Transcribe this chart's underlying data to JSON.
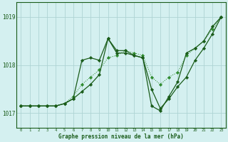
{
  "xlabel": "Graphe pression niveau de la mer (hPa)",
  "bg_color": "#d4f0f0",
  "grid_color": "#aed4d4",
  "line_color_dark": "#1a5c1a",
  "line_color_light": "#2e8b2e",
  "xlim": [
    -0.5,
    23.5
  ],
  "ylim": [
    1016.7,
    1019.3
  ],
  "yticks": [
    1017,
    1018,
    1019
  ],
  "xticks": [
    0,
    1,
    2,
    3,
    4,
    5,
    6,
    7,
    8,
    9,
    10,
    11,
    12,
    13,
    14,
    15,
    16,
    17,
    18,
    19,
    20,
    21,
    22,
    23
  ],
  "series_dotted_x": [
    0,
    1,
    2,
    3,
    4,
    5,
    6,
    7,
    8,
    9,
    10,
    11,
    12,
    13,
    14,
    15,
    16,
    17,
    18,
    19,
    20,
    21,
    22,
    23
  ],
  "series_dotted_y": [
    1017.15,
    1017.15,
    1017.15,
    1017.15,
    1017.15,
    1017.2,
    1017.35,
    1017.6,
    1017.75,
    1017.9,
    1018.15,
    1018.2,
    1018.3,
    1018.25,
    1018.2,
    1017.75,
    1017.6,
    1017.75,
    1017.85,
    1018.2,
    1018.35,
    1018.5,
    1018.75,
    1019.0
  ],
  "series_dark1_x": [
    0,
    1,
    2,
    3,
    4,
    5,
    6,
    7,
    8,
    9,
    10,
    11,
    12,
    13,
    14,
    15,
    16,
    17,
    18,
    19,
    20,
    21,
    22,
    23
  ],
  "series_dark1_y": [
    1017.15,
    1017.15,
    1017.15,
    1017.15,
    1017.15,
    1017.2,
    1017.3,
    1018.1,
    1018.15,
    1018.1,
    1018.55,
    1018.3,
    1018.3,
    1018.2,
    1018.15,
    1017.15,
    1017.05,
    1017.35,
    1017.65,
    1018.25,
    1018.35,
    1018.5,
    1018.8,
    1019.0
  ],
  "series_dark2_x": [
    0,
    1,
    2,
    3,
    4,
    5,
    6,
    7,
    8,
    9,
    10,
    11,
    12,
    13,
    14,
    15,
    16,
    17,
    18,
    19,
    20,
    21,
    22,
    23
  ],
  "series_dark2_y": [
    1017.15,
    1017.15,
    1017.15,
    1017.15,
    1017.15,
    1017.2,
    1017.3,
    1017.45,
    1017.6,
    1017.8,
    1018.55,
    1018.25,
    1018.25,
    1018.2,
    1018.15,
    1017.5,
    1017.1,
    1017.3,
    1017.55,
    1017.75,
    1018.1,
    1018.35,
    1018.65,
    1019.0
  ]
}
